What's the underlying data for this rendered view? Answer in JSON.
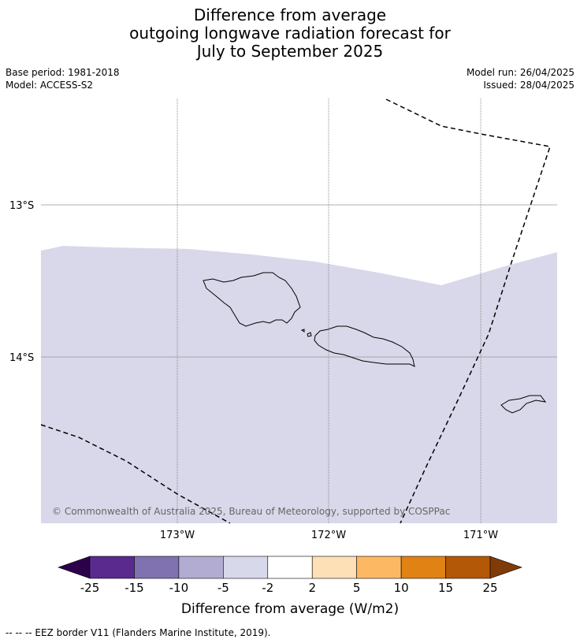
{
  "title": {
    "line1": "Difference from average",
    "line2": "outgoing longwave radiation forecast for",
    "line3": "July to September 2025"
  },
  "meta": {
    "base_period": "Base period: 1981-2018",
    "model": "Model: ACCESS-S2",
    "model_run": "Model run: 26/04/2025",
    "issued": "Issued: 28/04/2025"
  },
  "map": {
    "copyright": "© Commonwealth of Australia 2025, Bureau of Meteorology, supported by COSPPac",
    "lat_labels": [
      "13°S",
      "14°S"
    ],
    "lon_labels": [
      "173°W",
      "172°W",
      "171°W"
    ],
    "shaded_category": "-5 to -2",
    "colors": {
      "shading": "#d8d8ea",
      "coast": "#000000",
      "grid": "#999999",
      "eez": "#000000"
    }
  },
  "colorbar": {
    "tick_labels": [
      "-25",
      "-15",
      "-10",
      "-5",
      "-2",
      "2",
      "5",
      "10",
      "15",
      "25"
    ],
    "bins": [
      {
        "range": "< -25",
        "color": "#2d004b"
      },
      {
        "range": "-25 to -15",
        "color": "#5b2a8f"
      },
      {
        "range": "-15 to -10",
        "color": "#8072b0"
      },
      {
        "range": "-10 to -5",
        "color": "#b2abd2"
      },
      {
        "range": "-5 to -2",
        "color": "#d8d8eb"
      },
      {
        "range": "-2 to 2",
        "color": "#ffffff"
      },
      {
        "range": "2 to 5",
        "color": "#fee0b6"
      },
      {
        "range": "5 to 10",
        "color": "#fdb863"
      },
      {
        "range": "10 to 15",
        "color": "#e08214"
      },
      {
        "range": "15 to 25",
        "color": "#b35806"
      },
      {
        "range": "> 25",
        "color": "#7f3b08"
      }
    ],
    "label": "Difference from average (W/m2)"
  },
  "footnote": "--  --  -- EEZ border V11 (Flanders Marine Institute, 2019)."
}
